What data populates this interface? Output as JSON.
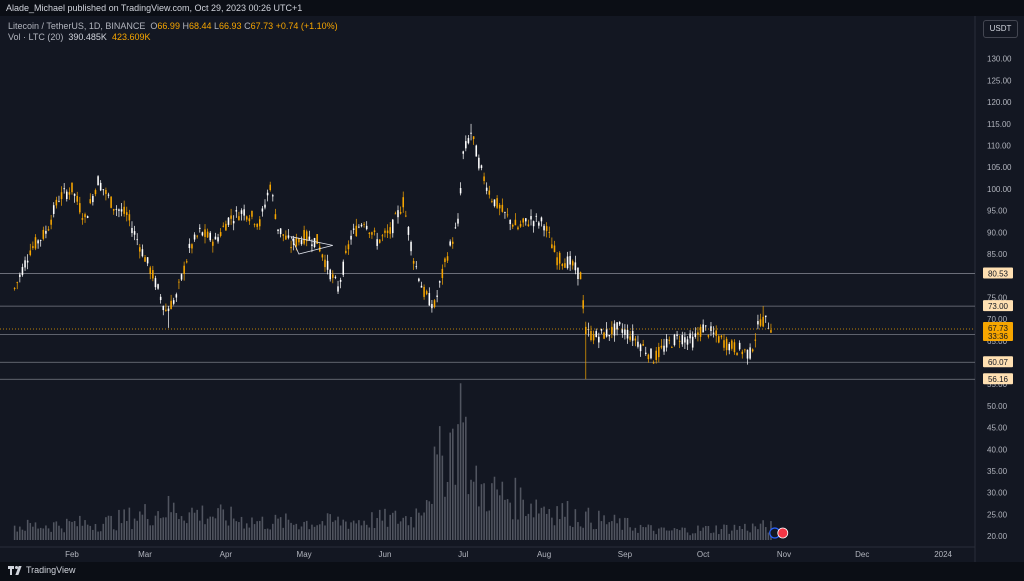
{
  "header": {
    "publisher_text": "Alade_Michael published on TradingView.com, Oct 29, 2023 00:26 UTC+1"
  },
  "legend": {
    "symbol": "Litecoin / TetherUS, 1D, BINANCE",
    "open_label": "O",
    "open": "66.99",
    "high_label": "H",
    "high": "68.44",
    "low_label": "L",
    "low": "66.93",
    "close_label": "C",
    "close": "67.73",
    "change": "+0.74 (+1.10%)",
    "vol_label": "Vol · LTC (20)",
    "vol_value": "390.485K",
    "vol_ma": "423.609K"
  },
  "currency_button": "USDT",
  "brand": "TradingView",
  "colors": {
    "background": "#131722",
    "up": "#f7a600",
    "down": "#ffffff",
    "grid_line": "#787b86",
    "label_bg": "#ffe0b2",
    "last_price_bg": "#f7a600"
  },
  "icons": {
    "logo": "tradingview-logo-icon",
    "event": "flag-event-icon"
  },
  "chart_data": {
    "type": "candlestick",
    "symbol": "LTCUSDT",
    "timeframe": "1D",
    "y_ticks": [
      20,
      25,
      30,
      35,
      40,
      45,
      50,
      55,
      60,
      65,
      70,
      75,
      80,
      85,
      90,
      95,
      100,
      105,
      110,
      115,
      120,
      125,
      130
    ],
    "x_labels": [
      {
        "label": "Feb",
        "date": "2023-02-01"
      },
      {
        "label": "Mar",
        "date": "2023-03-01"
      },
      {
        "label": "Apr",
        "date": "2023-04-01"
      },
      {
        "label": "May",
        "date": "2023-05-01"
      },
      {
        "label": "Jun",
        "date": "2023-06-01"
      },
      {
        "label": "Jul",
        "date": "2023-07-01"
      },
      {
        "label": "Aug",
        "date": "2023-08-01"
      },
      {
        "label": "Sep",
        "date": "2023-09-01"
      },
      {
        "label": "Oct",
        "date": "2023-10-01"
      },
      {
        "label": "Nov",
        "date": "2023-11-01"
      },
      {
        "label": "Dec",
        "date": "2023-12-01"
      },
      {
        "label": "2024",
        "date": "2024-01-01"
      }
    ],
    "horizontal_levels": [
      80.53,
      73.0,
      66.49,
      60.07,
      56.16
    ],
    "last_price": 67.73,
    "countdown": "33:36",
    "close_path": [
      {
        "date": "2023-01-10",
        "close": 77
      },
      {
        "date": "2023-01-16",
        "close": 86
      },
      {
        "date": "2023-01-22",
        "close": 90
      },
      {
        "date": "2023-01-27",
        "close": 98
      },
      {
        "date": "2023-02-01",
        "close": 100
      },
      {
        "date": "2023-02-06",
        "close": 93
      },
      {
        "date": "2023-02-11",
        "close": 102
      },
      {
        "date": "2023-02-17",
        "close": 96
      },
      {
        "date": "2023-02-22",
        "close": 94
      },
      {
        "date": "2023-02-27",
        "close": 87
      },
      {
        "date": "2023-03-04",
        "close": 80
      },
      {
        "date": "2023-03-09",
        "close": 72
      },
      {
        "date": "2023-03-13",
        "close": 75
      },
      {
        "date": "2023-03-18",
        "close": 86
      },
      {
        "date": "2023-03-22",
        "close": 90
      },
      {
        "date": "2023-03-28",
        "close": 88
      },
      {
        "date": "2023-04-02",
        "close": 93
      },
      {
        "date": "2023-04-08",
        "close": 95
      },
      {
        "date": "2023-04-14",
        "close": 92
      },
      {
        "date": "2023-04-18",
        "close": 101
      },
      {
        "date": "2023-04-21",
        "close": 91
      },
      {
        "date": "2023-04-26",
        "close": 87
      },
      {
        "date": "2023-05-01",
        "close": 89
      },
      {
        "date": "2023-05-06",
        "close": 88
      },
      {
        "date": "2023-05-10",
        "close": 82
      },
      {
        "date": "2023-05-14",
        "close": 77
      },
      {
        "date": "2023-05-19",
        "close": 89
      },
      {
        "date": "2023-05-24",
        "close": 93
      },
      {
        "date": "2023-05-29",
        "close": 88
      },
      {
        "date": "2023-06-03",
        "close": 90
      },
      {
        "date": "2023-06-08",
        "close": 97
      },
      {
        "date": "2023-06-12",
        "close": 84
      },
      {
        "date": "2023-06-16",
        "close": 76
      },
      {
        "date": "2023-06-20",
        "close": 73
      },
      {
        "date": "2023-06-25",
        "close": 85
      },
      {
        "date": "2023-06-29",
        "close": 92
      },
      {
        "date": "2023-07-01",
        "close": 108
      },
      {
        "date": "2023-07-04",
        "close": 113
      },
      {
        "date": "2023-07-08",
        "close": 104
      },
      {
        "date": "2023-07-12",
        "close": 98
      },
      {
        "date": "2023-07-17",
        "close": 94
      },
      {
        "date": "2023-07-22",
        "close": 91
      },
      {
        "date": "2023-07-27",
        "close": 93
      },
      {
        "date": "2023-08-01",
        "close": 92
      },
      {
        "date": "2023-08-06",
        "close": 84
      },
      {
        "date": "2023-08-11",
        "close": 83
      },
      {
        "date": "2023-08-15",
        "close": 80
      },
      {
        "date": "2023-08-17",
        "close": 67
      },
      {
        "date": "2023-08-21",
        "close": 66
      },
      {
        "date": "2023-08-26",
        "close": 67
      },
      {
        "date": "2023-08-30",
        "close": 68
      },
      {
        "date": "2023-09-04",
        "close": 66
      },
      {
        "date": "2023-09-09",
        "close": 63
      },
      {
        "date": "2023-09-12",
        "close": 61
      },
      {
        "date": "2023-09-17",
        "close": 64
      },
      {
        "date": "2023-09-22",
        "close": 66
      },
      {
        "date": "2023-09-27",
        "close": 65
      },
      {
        "date": "2023-10-01",
        "close": 68
      },
      {
        "date": "2023-10-06",
        "close": 66
      },
      {
        "date": "2023-10-11",
        "close": 64
      },
      {
        "date": "2023-10-15",
        "close": 63
      },
      {
        "date": "2023-10-19",
        "close": 62
      },
      {
        "date": "2023-10-23",
        "close": 70
      },
      {
        "date": "2023-10-26",
        "close": 69
      },
      {
        "date": "2023-10-28",
        "close": 67.73
      }
    ],
    "volume_path": [
      {
        "date": "2023-01-10",
        "volume": 3
      },
      {
        "date": "2023-02-15",
        "volume": 4
      },
      {
        "date": "2023-03-10",
        "volume": 7
      },
      {
        "date": "2023-04-15",
        "volume": 4
      },
      {
        "date": "2023-05-10",
        "volume": 4
      },
      {
        "date": "2023-06-12",
        "volume": 5
      },
      {
        "date": "2023-07-01",
        "volume": 28
      },
      {
        "date": "2023-07-04",
        "volume": 12
      },
      {
        "date": "2023-08-17",
        "volume": 5
      },
      {
        "date": "2023-09-15",
        "volume": 2
      },
      {
        "date": "2023-10-24",
        "volume": 3
      }
    ]
  }
}
